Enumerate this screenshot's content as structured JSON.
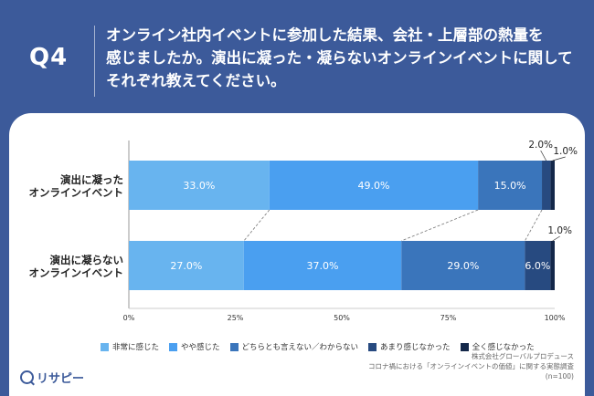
{
  "question": {
    "number": "Q4",
    "lines": [
      "オンライン社内イベントに参加した結果、会社・上層部の熱量を",
      "感じましたか。演出に凝った・凝らないオンラインイベントに関して",
      "それぞれ教えてください。"
    ]
  },
  "chart_data": {
    "type": "bar",
    "orientation": "horizontal-stacked-100",
    "categories": [
      [
        "演出に凝った",
        "オンラインイベント"
      ],
      [
        "演出に凝らない",
        "オンラインイベント"
      ]
    ],
    "series": [
      {
        "name": "非常に感じた",
        "values": [
          33.0,
          27.0
        ],
        "color": "#68b4ef",
        "labels": [
          "33.0%",
          "27.0%"
        ]
      },
      {
        "name": "やや感じた",
        "values": [
          49.0,
          37.0
        ],
        "color": "#4a9ff0",
        "labels": [
          "49.0%",
          "37.0%"
        ]
      },
      {
        "name": "どちらとも言えない／わからない",
        "values": [
          15.0,
          29.0
        ],
        "color": "#3a75bb",
        "labels": [
          "15.0%",
          "29.0%"
        ]
      },
      {
        "name": "あまり感じなかった",
        "values": [
          2.0,
          6.0
        ],
        "color": "#274a80",
        "labels": [
          "2.0%",
          "6.0%"
        ]
      },
      {
        "name": "全く感じなかった",
        "values": [
          1.0,
          1.0
        ],
        "color": "#14284a",
        "labels": [
          "1.0%",
          "1.0%"
        ]
      }
    ],
    "xticks": [
      "0%",
      "25%",
      "50%",
      "75%",
      "100%"
    ],
    "xlim": [
      0,
      100
    ],
    "legend_position": "bottom"
  },
  "source": {
    "company": "株式会社グローバルプロデュース",
    "survey": "コロナ禍における「オンラインイベントの価値」に関する実態調査",
    "n": "(n=100)"
  },
  "logo": {
    "text": "リサピー"
  }
}
